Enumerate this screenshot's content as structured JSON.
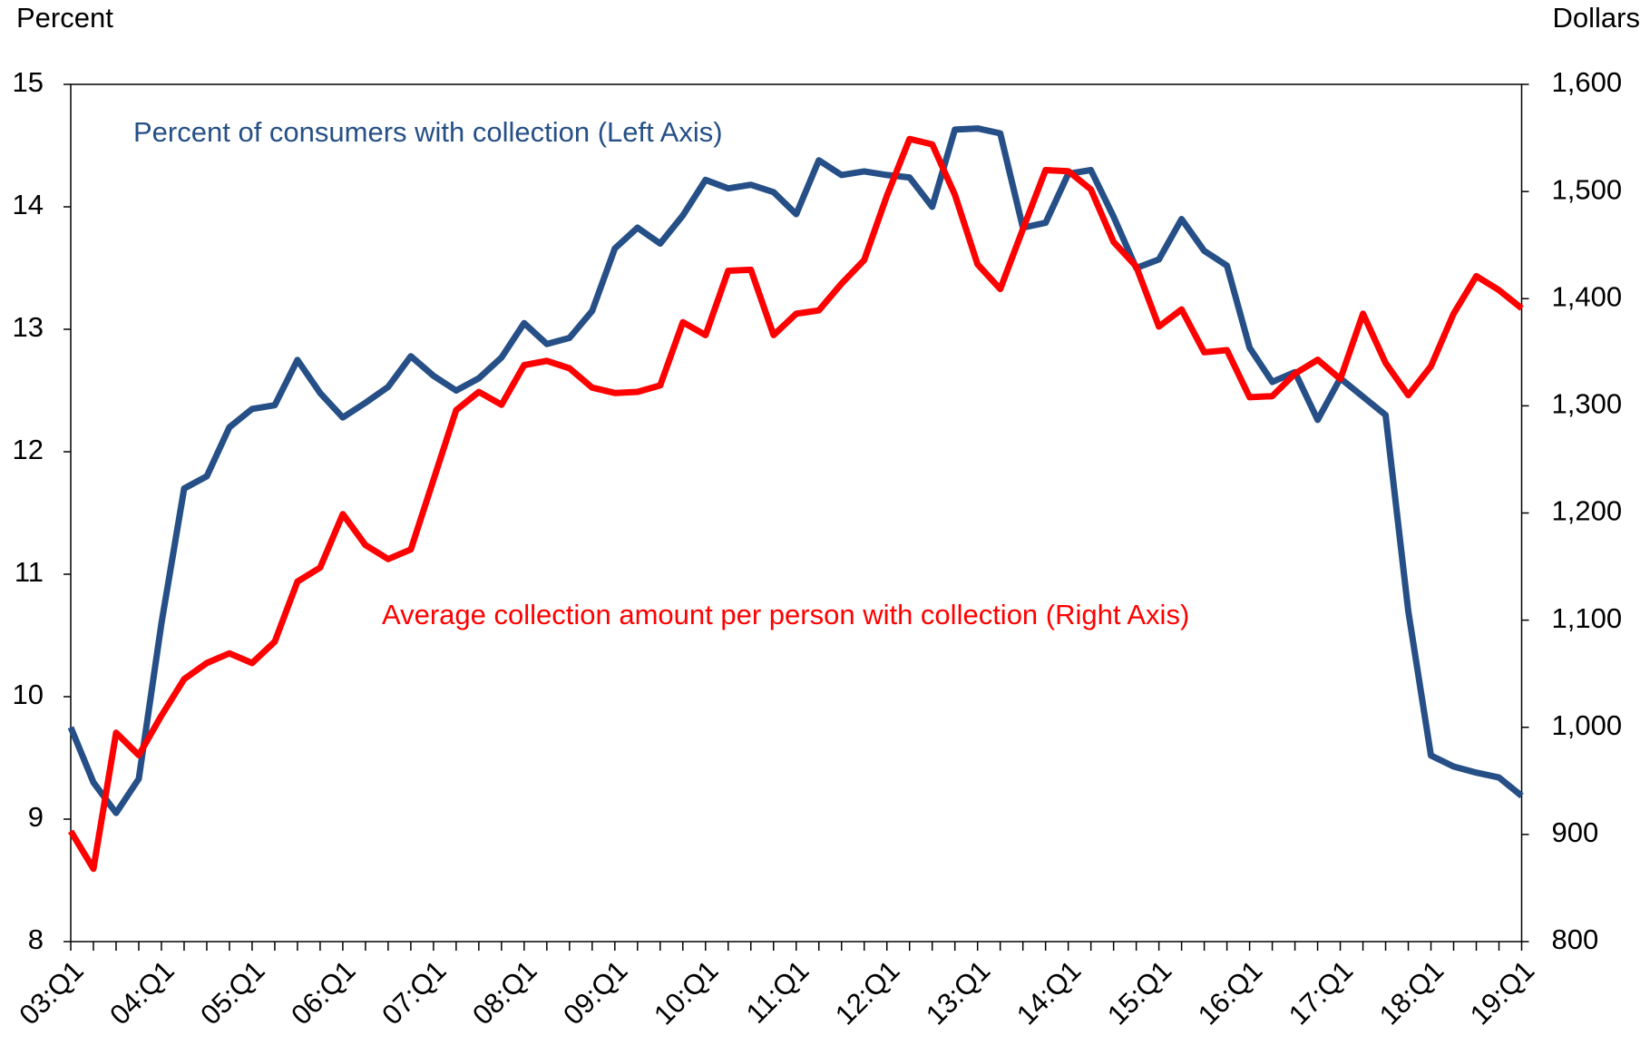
{
  "chart_data": {
    "type": "line",
    "y_label": "Percent",
    "y2_label": "Dollars",
    "categories": [
      "03:Q1",
      null,
      null,
      null,
      "04:Q1",
      null,
      null,
      null,
      "05:Q1",
      null,
      null,
      null,
      "06:Q1",
      null,
      null,
      null,
      "07:Q1",
      null,
      null,
      null,
      "08:Q1",
      null,
      null,
      null,
      "09:Q1",
      null,
      null,
      null,
      "10:Q1",
      null,
      null,
      null,
      "11:Q1",
      null,
      null,
      null,
      "12:Q1",
      null,
      null,
      null,
      "13:Q1",
      null,
      null,
      null,
      "14:Q1",
      null,
      null,
      null,
      "15:Q1",
      null,
      null,
      null,
      "16:Q1",
      null,
      null,
      null,
      "17:Q1",
      null,
      null,
      null,
      "18:Q1",
      null,
      null,
      null,
      "19:Q1"
    ],
    "series": [
      {
        "name": "Percent of consumers with collection (Left Axis)",
        "color": "#254f86",
        "axis": "y",
        "values": [
          9.75,
          9.3,
          9.05,
          9.33,
          10.6,
          11.7,
          11.8,
          12.2,
          12.35,
          12.38,
          12.75,
          12.48,
          12.28,
          12.4,
          12.53,
          12.78,
          12.62,
          12.5,
          12.6,
          12.77,
          13.05,
          12.88,
          12.93,
          13.15,
          13.66,
          13.83,
          13.7,
          13.93,
          14.22,
          14.15,
          14.18,
          14.12,
          13.94,
          14.38,
          14.26,
          14.29,
          14.26,
          14.24,
          14.0,
          14.63,
          14.64,
          14.6,
          13.83,
          13.87,
          14.27,
          14.3,
          13.92,
          13.5,
          13.57,
          13.9,
          13.64,
          13.52,
          12.85,
          12.57,
          12.65,
          12.26,
          12.6,
          12.45,
          12.3,
          10.7,
          9.52,
          9.43,
          9.38,
          9.34,
          9.19
        ]
      },
      {
        "name": "Average collection amount per person with collection (Right Axis)",
        "color": "#ff0000",
        "axis": "y2",
        "values": [
          903,
          868,
          995,
          974,
          1011,
          1045,
          1060,
          1069,
          1060,
          1080,
          1136,
          1149,
          1199,
          1170,
          1157,
          1166,
          1231,
          1296,
          1313,
          1301,
          1338,
          1342,
          1335,
          1317,
          1312,
          1313,
          1319,
          1378,
          1366,
          1426,
          1427,
          1366,
          1386,
          1389,
          1414,
          1436,
          1496,
          1549,
          1544,
          1497,
          1432,
          1409,
          1465,
          1520,
          1519,
          1502,
          1453,
          1430,
          1374,
          1390,
          1350,
          1352,
          1308,
          1309,
          1330,
          1343,
          1325,
          1386,
          1340,
          1310,
          1337,
          1386,
          1421,
          1408,
          1391
        ]
      }
    ],
    "ylim": [
      8,
      15
    ],
    "yticks": [
      8,
      9,
      10,
      11,
      12,
      13,
      14,
      15
    ],
    "y2lim": [
      800,
      1600
    ],
    "y2ticks": [
      800,
      900,
      {
        "value": 1000,
        "label": "1,000"
      },
      {
        "value": 1100,
        "label": "1,100"
      },
      {
        "value": 1200,
        "label": "1,200"
      },
      {
        "value": 1300,
        "label": "1,300"
      },
      {
        "value": 1400,
        "label": "1,400"
      },
      {
        "value": 1500,
        "label": "1,500"
      },
      {
        "value": 1600,
        "label": "1,600"
      }
    ],
    "grid": false
  }
}
